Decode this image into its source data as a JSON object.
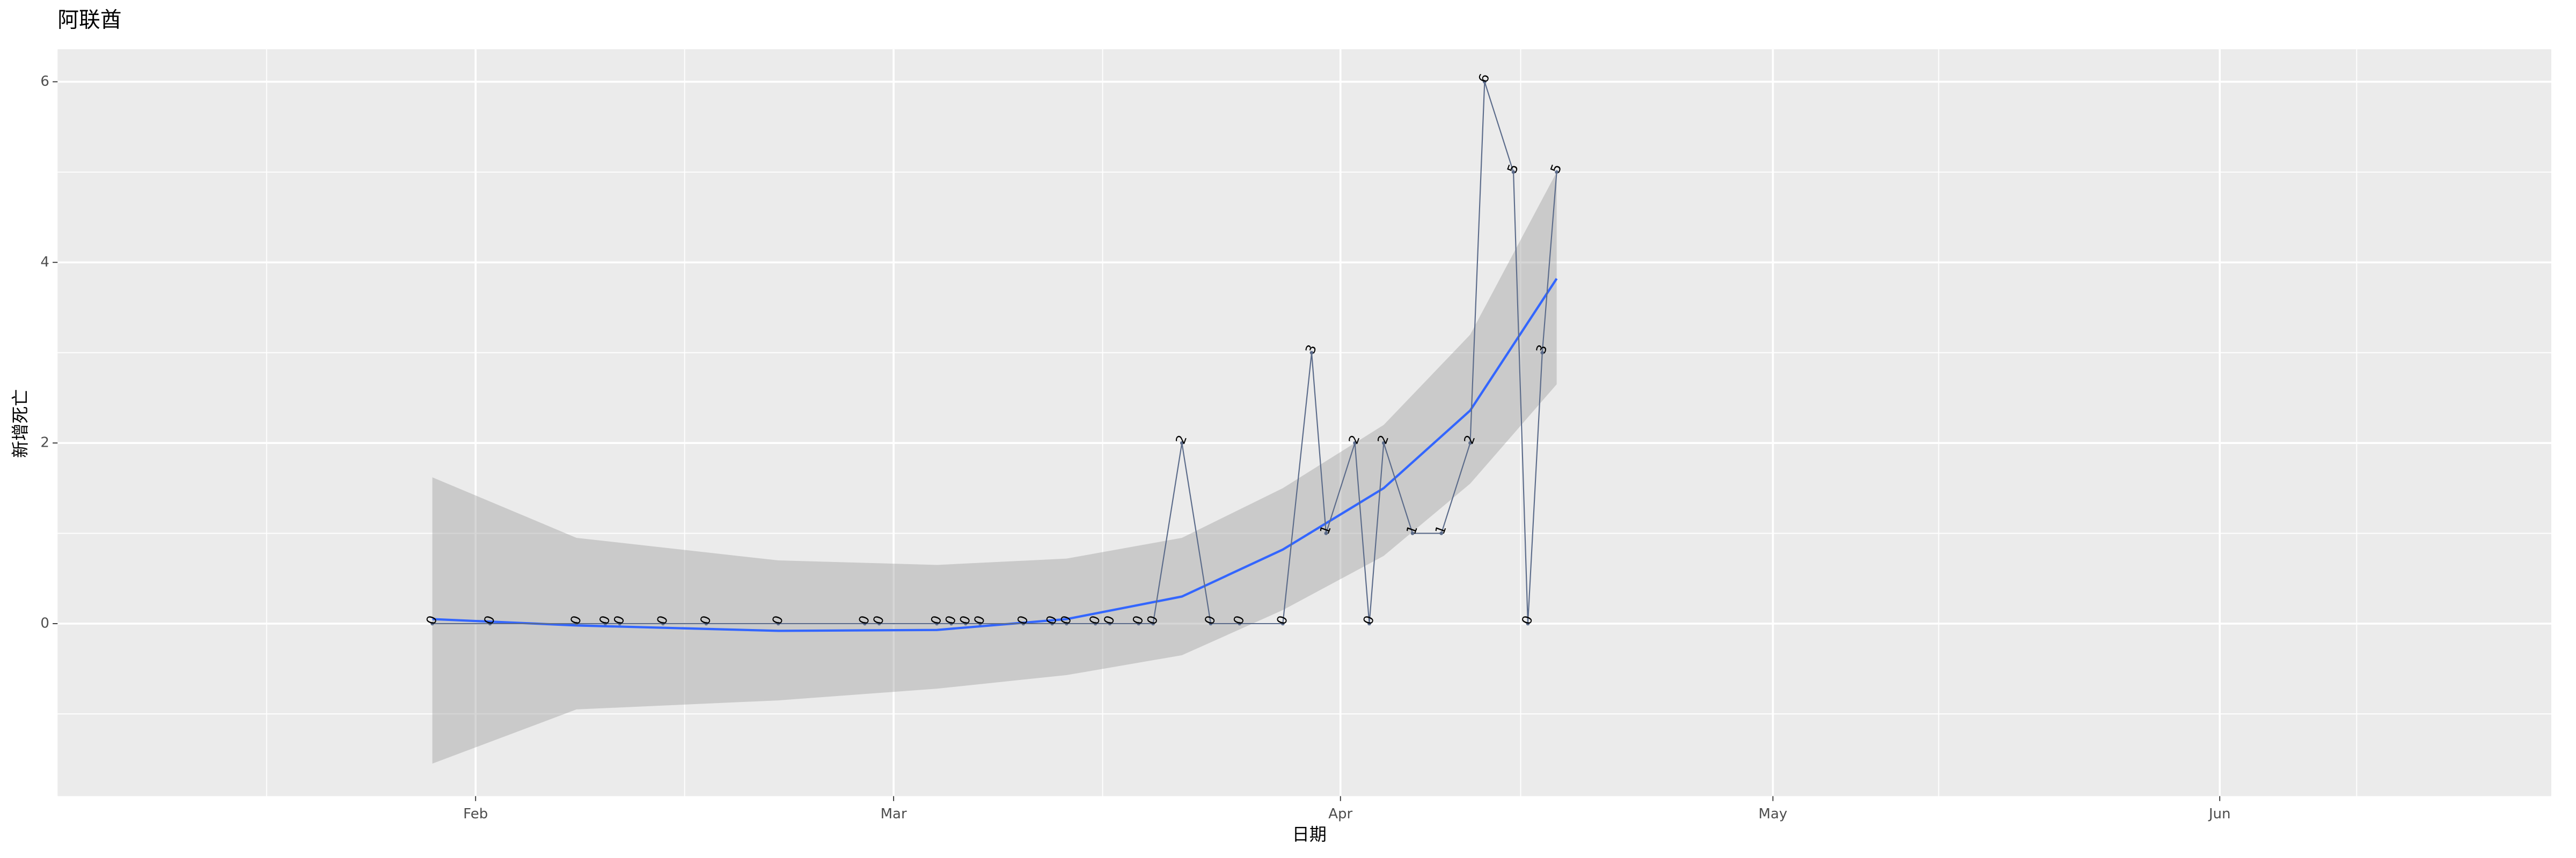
{
  "chart_data": {
    "type": "line",
    "title": "阿联酋",
    "x_label": "日期",
    "y_label": "新增死亡",
    "x": [
      "01-29",
      "02-02",
      "02-08",
      "02-10",
      "02-11",
      "02-14",
      "02-17",
      "02-22",
      "02-28",
      "02-29",
      "03-04",
      "03-05",
      "03-06",
      "03-07",
      "03-10",
      "03-12",
      "03-13",
      "03-15",
      "03-16",
      "03-18",
      "03-19",
      "03-21",
      "03-23",
      "03-25",
      "03-28",
      "03-30",
      "03-31",
      "04-02",
      "04-03",
      "04-04",
      "04-06",
      "04-08",
      "04-10",
      "04-11",
      "04-13",
      "04-14",
      "04-15",
      "04-16"
    ],
    "values": [
      0,
      0,
      0,
      0,
      0,
      0,
      0,
      0,
      0,
      0,
      0,
      0,
      0,
      0,
      0,
      0,
      0,
      0,
      0,
      0,
      0,
      2,
      0,
      0,
      0,
      3,
      1,
      2,
      0,
      2,
      1,
      1,
      2,
      6,
      5,
      0,
      3,
      5
    ],
    "color": "#5b6b8a",
    "smooth": {
      "color": "#3366ff",
      "x": [
        "01-29",
        "02-08",
        "02-22",
        "03-04",
        "03-13",
        "03-21",
        "03-28",
        "04-04",
        "04-10",
        "04-16"
      ],
      "values": [
        0.05,
        -0.02,
        -0.08,
        -0.07,
        0.05,
        0.3,
        0.82,
        1.5,
        2.36,
        3.82
      ],
      "lower": [
        -1.55,
        -0.95,
        -0.85,
        -0.72,
        -0.57,
        -0.35,
        0.15,
        0.75,
        1.55,
        2.65
      ],
      "upper": [
        1.62,
        0.95,
        0.7,
        0.65,
        0.72,
        0.95,
        1.5,
        2.2,
        3.2,
        5.0
      ]
    },
    "xlim": [
      "01-03",
      "06-24"
    ],
    "xticks": [
      {
        "value": "02-01",
        "label": "Feb"
      },
      {
        "value": "03-01",
        "label": "Mar"
      },
      {
        "value": "04-01",
        "label": "Apr"
      },
      {
        "value": "05-01",
        "label": "May"
      },
      {
        "value": "06-01",
        "label": "Jun"
      }
    ],
    "ylim": [
      -1.91,
      6.36
    ],
    "yticks": [
      0,
      2,
      4,
      6
    ],
    "grid": true
  }
}
